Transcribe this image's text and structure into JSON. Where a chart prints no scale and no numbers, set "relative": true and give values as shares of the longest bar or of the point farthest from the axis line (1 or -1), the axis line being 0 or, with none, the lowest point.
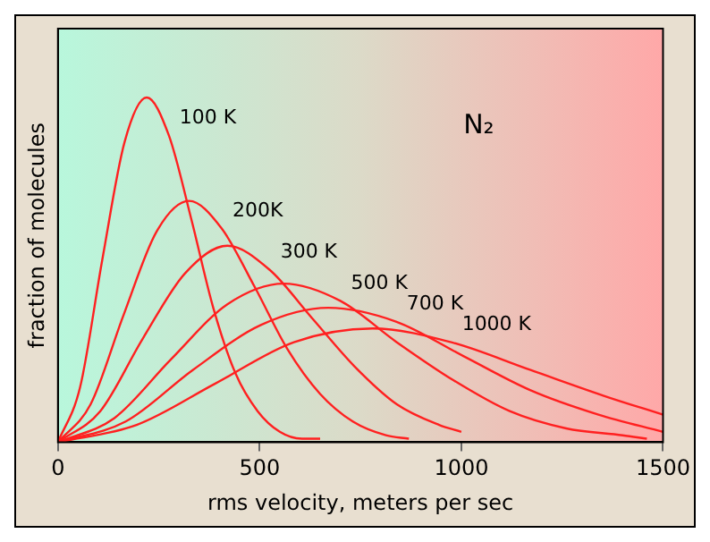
{
  "chart_data": {
    "type": "line",
    "relative": true,
    "xlabel": "rms velocity, meters per sec",
    "ylabel": "fraction of molecules",
    "annotations": [
      "N₂"
    ],
    "xlim": [
      0,
      1500
    ],
    "xticks": [
      0,
      500,
      1000,
      1500
    ],
    "grid": false,
    "legend": false,
    "marker": "none",
    "line_style": "solid",
    "series": [
      {
        "name": "100 K",
        "color": "#ff2020",
        "x": [
          0,
          55,
          110,
          165,
          220,
          275,
          330,
          385,
          440,
          495,
          550,
          605,
          650
        ],
        "values": [
          0,
          0.16,
          0.53,
          0.87,
          1,
          0.89,
          0.65,
          0.39,
          0.2,
          0.09,
          0.03,
          0.01,
          0.01
        ]
      },
      {
        "name": "200K",
        "color": "#ff2020",
        "x": [
          0,
          81,
          163,
          244,
          325,
          406,
          488,
          569,
          650,
          731,
          813,
          870
        ],
        "values": [
          0,
          0.11,
          0.37,
          0.61,
          0.7,
          0.62,
          0.45,
          0.27,
          0.14,
          0.06,
          0.02,
          0.01
        ]
      },
      {
        "name": "300 K",
        "color": "#ff2020",
        "x": [
          0,
          105,
          210,
          315,
          420,
          525,
          630,
          735,
          840,
          945,
          1000
        ],
        "values": [
          0,
          0.09,
          0.3,
          0.49,
          0.57,
          0.5,
          0.36,
          0.22,
          0.11,
          0.05,
          0.03
        ]
      },
      {
        "name": "500 K",
        "color": "#ff2020",
        "x": [
          0,
          140,
          280,
          420,
          560,
          700,
          840,
          980,
          1120,
          1260,
          1400,
          1460
        ],
        "values": [
          0,
          0.07,
          0.24,
          0.4,
          0.46,
          0.41,
          0.29,
          0.18,
          0.09,
          0.04,
          0.02,
          0.01
        ]
      },
      {
        "name": "700 K",
        "color": "#ff2020",
        "x": [
          0,
          168,
          335,
          503,
          670,
          838,
          1005,
          1173,
          1340,
          1500
        ],
        "values": [
          0,
          0.06,
          0.21,
          0.34,
          0.39,
          0.35,
          0.25,
          0.15,
          0.08,
          0.03
        ]
      },
      {
        "name": "1000 K",
        "color": "#ff2020",
        "x": [
          0,
          195,
          390,
          585,
          780,
          975,
          1170,
          1365,
          1500
        ],
        "values": [
          0,
          0.05,
          0.17,
          0.29,
          0.33,
          0.29,
          0.21,
          0.13,
          0.08
        ]
      }
    ]
  }
}
